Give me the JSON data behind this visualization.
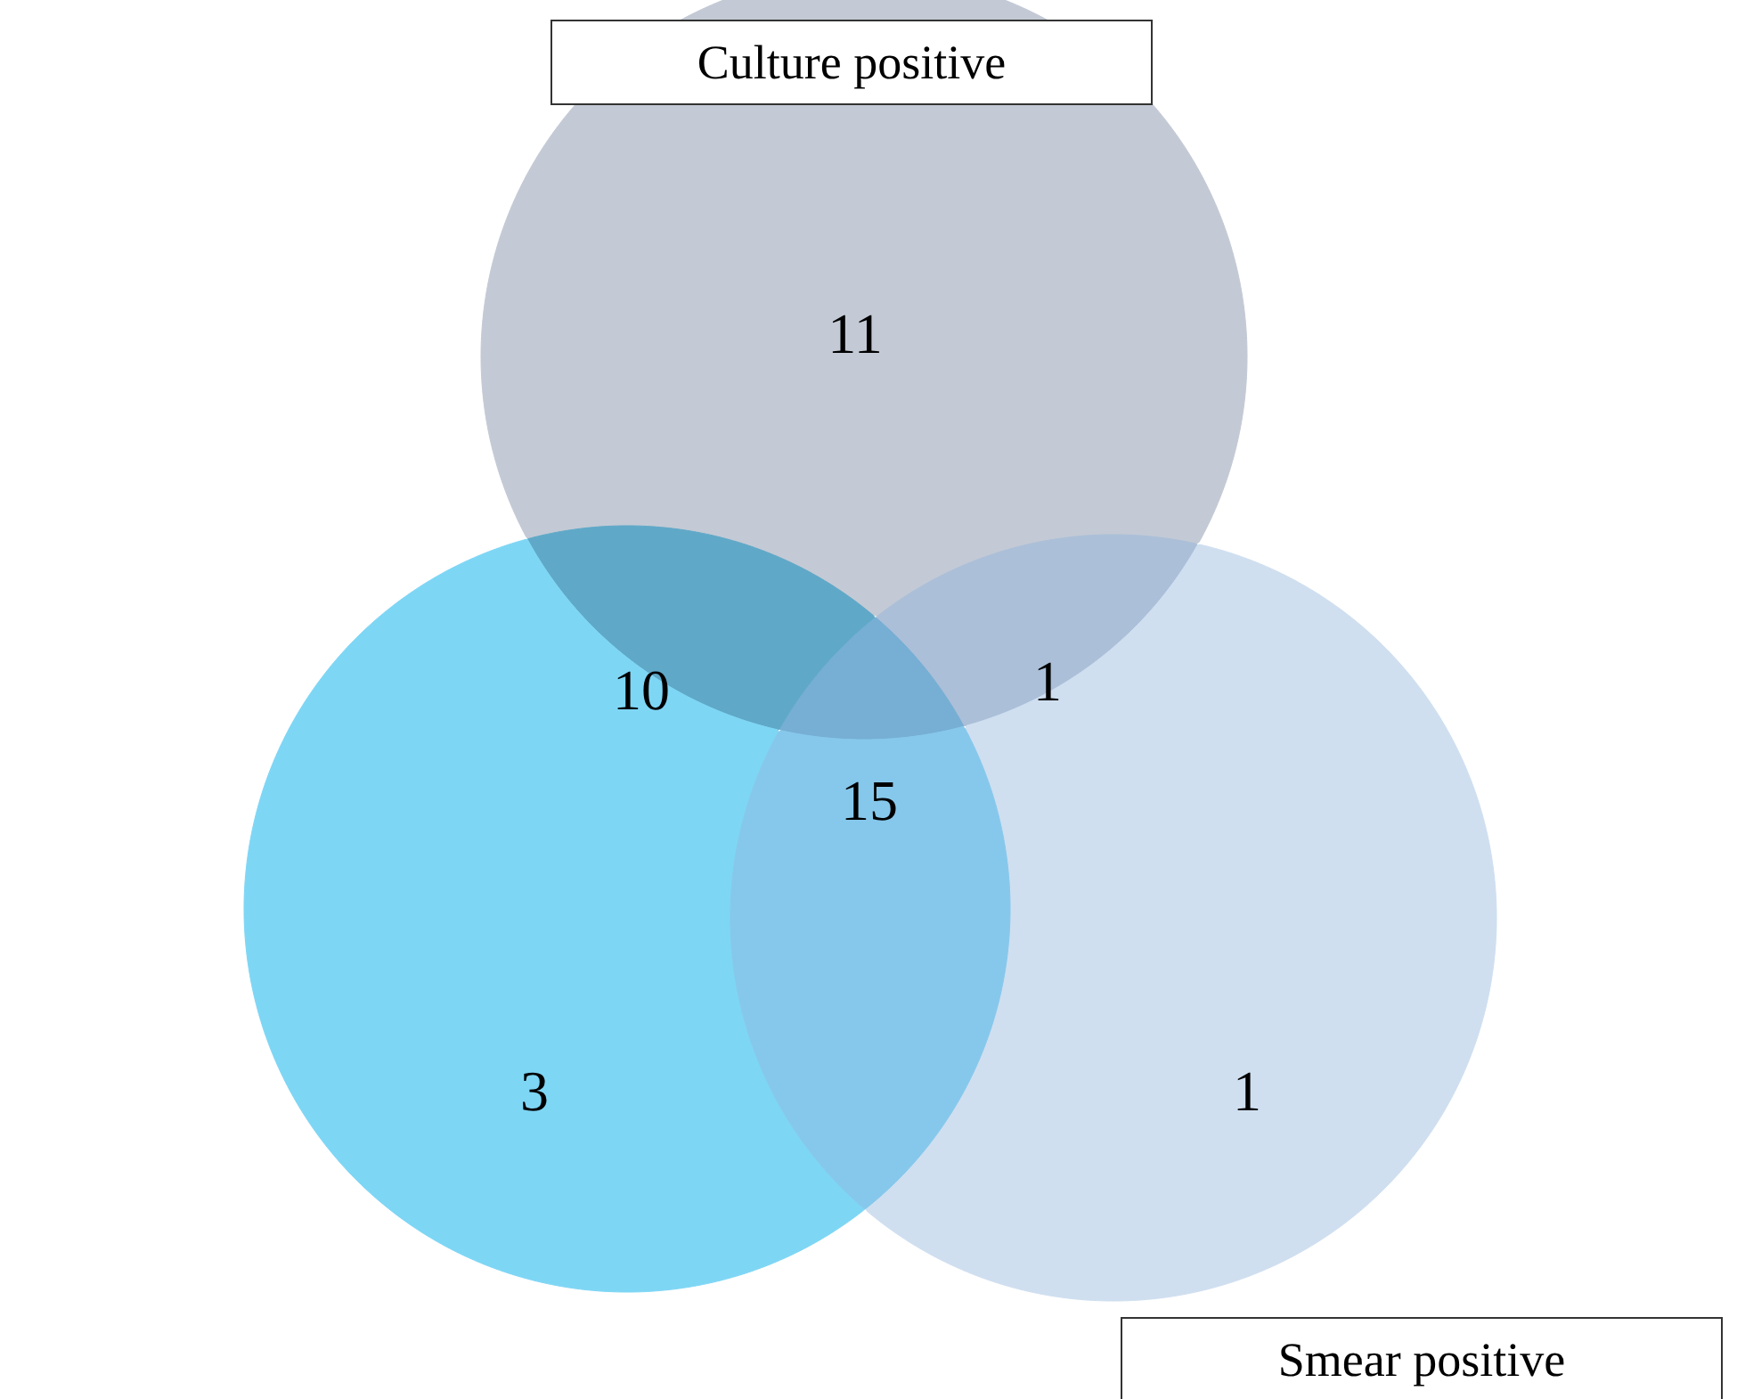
{
  "chart_data": {
    "type": "other",
    "data_labels": true,
    "categories": [
      null,
      null,
      null,
      null,
      null,
      null,
      null
    ],
    "values": [
      11,
      10,
      1,
      15,
      3,
      1,
      null
    ],
    "colors": [
      "#c3cad5",
      "#5fa8c8",
      "#abbfd8",
      "#76aed4",
      "#7ed6f5",
      "#cfdff0",
      "#86c8eb"
    ],
    "annotations": [
      "Culture positive",
      "Smear positive"
    ]
  }
}
